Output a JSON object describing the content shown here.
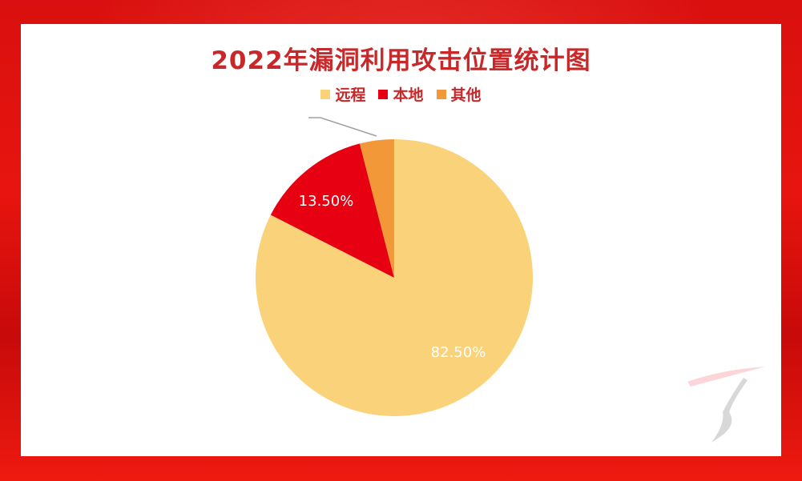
{
  "chart_data": {
    "type": "pie",
    "title": "2022年漏洞利用攻击位置统计图",
    "legend_position": "top",
    "categories": [
      "远程",
      "本地",
      "其他"
    ],
    "values": [
      82.5,
      13.5,
      4.0
    ],
    "data_labels": [
      "82.50%",
      "13.50%",
      ""
    ],
    "colors": [
      "#fad27a",
      "#e60012",
      "#f39839"
    ],
    "unit": "%"
  },
  "colors": {
    "title": "#c8282a",
    "frame": "#e8140f"
  }
}
